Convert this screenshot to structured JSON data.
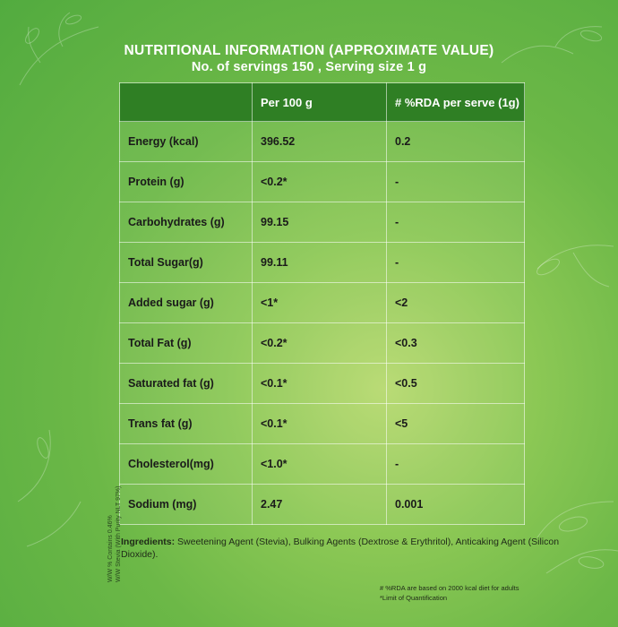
{
  "heading": {
    "title": "NUTRITIONAL INFORMATION (APPROXIMATE VALUE)",
    "subtitle": "No. of servings 150 , Serving size 1 g"
  },
  "table": {
    "headers": [
      "",
      "Per 100 g",
      "# %RDA per serve  (1g)"
    ],
    "rows": [
      {
        "nutrient": "Energy (kcal)",
        "per100": "396.52",
        "rda": "0.2"
      },
      {
        "nutrient": "Protein (g)",
        "per100": "<0.2*",
        "rda": "-"
      },
      {
        "nutrient": "Carbohydrates (g)",
        "per100": "99.15",
        "rda": "-"
      },
      {
        "nutrient": "Total Sugar(g)",
        "per100": "99.11",
        "rda": "-"
      },
      {
        "nutrient": "Added sugar (g)",
        "per100": "<1*",
        "rda": "<2"
      },
      {
        "nutrient": "Total Fat (g)",
        "per100": "<0.2*",
        "rda": "<0.3"
      },
      {
        "nutrient": "Saturated fat (g)",
        "per100": "<0.1*",
        "rda": "<0.5"
      },
      {
        "nutrient": "Trans fat (g)",
        "per100": "<0.1*",
        "rda": "<5"
      },
      {
        "nutrient": "Cholesterol(mg)",
        "per100": "<1.0*",
        "rda": "-"
      },
      {
        "nutrient": "Sodium (mg)",
        "per100": "2.47",
        "rda": "0.001"
      }
    ]
  },
  "side_note": {
    "line1": "W/W % Contains 0.46%",
    "line2": "W/W Stevia  (With Purity NLT 97%)"
  },
  "ingredients": {
    "label": "Ingredients:",
    "text": "Sweetening Agent (Stevia), Bulking Agents (Dextrose & Erythritol), Anticaking Agent (Silicon Dioxide)."
  },
  "footnotes": {
    "rda_note": "# %RDA are based on 2000 kcal diet for adults",
    "limit_note": "*Limit of Quantification"
  },
  "colors": {
    "background": "#6cb847",
    "header_fill": "#2f7f24",
    "text": "#1a1a1a"
  }
}
